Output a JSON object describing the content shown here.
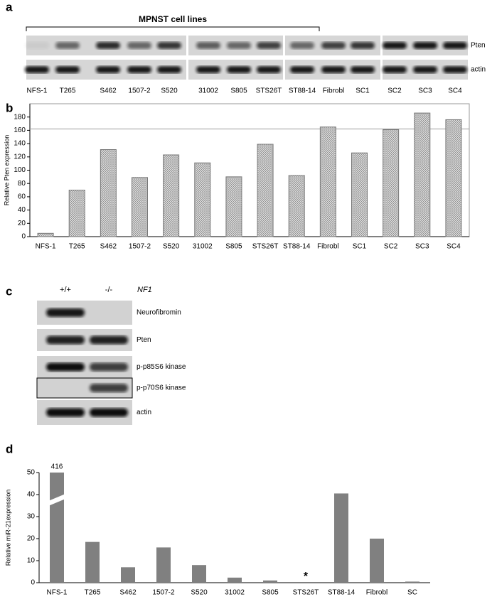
{
  "panels": {
    "a": {
      "label": "a",
      "group_label": "MPNST cell lines",
      "rows": [
        "Pten",
        "actin"
      ],
      "lanes": [
        "NFS-1",
        "T265",
        "S462",
        "1507-2",
        "S520",
        "31002",
        "S805",
        "STS26T",
        "ST88-14",
        "Fibrobl",
        "SC1",
        "SC2",
        "SC3",
        "SC4"
      ]
    },
    "c": {
      "label": "c",
      "columns": [
        "+/+",
        "-/-"
      ],
      "gene": "NF1",
      "rows": [
        "Neurofibromin",
        "Pten",
        "p-p85S6 kinase",
        "p-p70S6 kinase",
        "actin"
      ]
    }
  },
  "chart_data": [
    {
      "type": "bar",
      "panel_label": "b",
      "y_label": "Relative Pten expression",
      "categories": [
        "NFS-1",
        "T265",
        "S462",
        "1507-2",
        "S520",
        "31002",
        "S805",
        "STS26T",
        "ST88-14",
        "Fibrobl",
        "SC1",
        "SC2",
        "SC3",
        "SC4"
      ],
      "values": [
        5,
        70,
        131,
        89,
        123,
        111,
        90,
        139,
        92,
        165,
        126,
        161,
        186,
        176
      ],
      "reference_line": 162,
      "color": "#bbbbbb",
      "ylim": [
        0,
        200
      ],
      "yticks": [
        0,
        20,
        40,
        60,
        80,
        100,
        120,
        140,
        160,
        180
      ]
    },
    {
      "type": "bar",
      "panel_label": "d",
      "y_label": "Relative miR-21expression",
      "categories": [
        "NFS-1",
        "T265",
        "S462",
        "1507-2",
        "S520",
        "31002",
        "S805",
        "STS26T",
        "ST88-14",
        "Fibrobl",
        "SC"
      ],
      "values": [
        416,
        18.5,
        7,
        16,
        8,
        2.3,
        1,
        0,
        40.5,
        20,
        0.5
      ],
      "value_labels": [
        "416",
        null,
        null,
        null,
        null,
        null,
        null,
        null,
        null,
        null,
        null
      ],
      "annotations": [
        {
          "x": "STS26T",
          "text": "*"
        }
      ],
      "axis_break": true,
      "color": "#808080",
      "ylim": [
        0,
        50
      ],
      "yticks": [
        0,
        10,
        20,
        30,
        40,
        50
      ]
    }
  ]
}
